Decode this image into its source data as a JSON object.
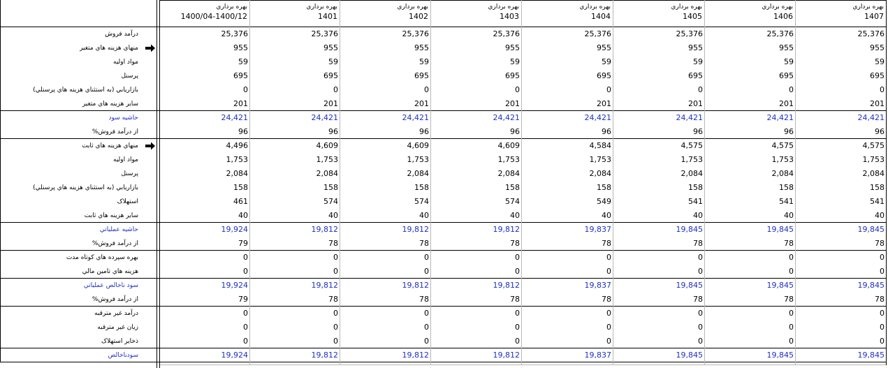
{
  "columns": [
    {
      "line1": "بهره برداري",
      "line2": "1400/04-1400/12"
    },
    {
      "line1": "بهره برداري",
      "line2": "1401"
    },
    {
      "line1": "بهره برداري",
      "line2": "1402"
    },
    {
      "line1": "بهره برداري",
      "line2": "1403"
    },
    {
      "line1": "بهره برداري",
      "line2": "1404"
    },
    {
      "line1": "بهره برداري",
      "line2": "1405"
    },
    {
      "line1": "بهره برداري",
      "line2": "1406"
    },
    {
      "line1": "بهره برداري",
      "line2": "1407"
    }
  ],
  "rows": [
    {
      "label": "درآمد فروش",
      "values": [
        "25,376",
        "25,376",
        "25,376",
        "25,376",
        "25,376",
        "25,376",
        "25,376",
        "25,376"
      ]
    },
    {
      "label": "منهاي هزينه هاي متغير",
      "arrow": true,
      "values": [
        "955",
        "955",
        "955",
        "955",
        "955",
        "955",
        "955",
        "955"
      ]
    },
    {
      "label": "مواد اوليه",
      "values": [
        "59",
        "59",
        "59",
        "59",
        "59",
        "59",
        "59",
        "59"
      ]
    },
    {
      "label": "پرسنل",
      "values": [
        "695",
        "695",
        "695",
        "695",
        "695",
        "695",
        "695",
        "695"
      ]
    },
    {
      "label": "بازاريابي (به استثناي هزينه هاي پرسنلي)",
      "values": [
        "0",
        "0",
        "0",
        "0",
        "0",
        "0",
        "0",
        "0"
      ]
    },
    {
      "label": "ساير هزينه هاي متغير",
      "values": [
        "201",
        "201",
        "201",
        "201",
        "201",
        "201",
        "201",
        "201"
      ]
    },
    {
      "label": "حاشيه سود",
      "highlight": true,
      "values": [
        "24,421",
        "24,421",
        "24,421",
        "24,421",
        "24,421",
        "24,421",
        "24,421",
        "24,421"
      ]
    },
    {
      "label": "%از درآمد فروش",
      "values": [
        "96",
        "96",
        "96",
        "96",
        "96",
        "96",
        "96",
        "96"
      ]
    },
    {
      "label": "منهاي هزينه هاي ثابت",
      "arrow": true,
      "values": [
        "4,496",
        "4,609",
        "4,609",
        "4,609",
        "4,584",
        "4,575",
        "4,575",
        "4,575"
      ]
    },
    {
      "label": "مواد اوليه",
      "values": [
        "1,753",
        "1,753",
        "1,753",
        "1,753",
        "1,753",
        "1,753",
        "1,753",
        "1,753"
      ]
    },
    {
      "label": "پرسنل",
      "values": [
        "2,084",
        "2,084",
        "2,084",
        "2,084",
        "2,084",
        "2,084",
        "2,084",
        "2,084"
      ]
    },
    {
      "label": "بازاريابي (به استثناي هزينه هاي پرسنلي)",
      "values": [
        "158",
        "158",
        "158",
        "158",
        "158",
        "158",
        "158",
        "158"
      ]
    },
    {
      "label": "استهلاک",
      "values": [
        "461",
        "574",
        "574",
        "574",
        "549",
        "541",
        "541",
        "541"
      ]
    },
    {
      "label": "ساير هزينه هاي ثابت",
      "values": [
        "40",
        "40",
        "40",
        "40",
        "40",
        "40",
        "40",
        "40"
      ]
    },
    {
      "label": "حاشيه عملياتي",
      "highlight": true,
      "values": [
        "19,924",
        "19,812",
        "19,812",
        "19,812",
        "19,837",
        "19,845",
        "19,845",
        "19,845"
      ]
    },
    {
      "label": "%از درآمد فروش",
      "values": [
        "79",
        "78",
        "78",
        "78",
        "78",
        "78",
        "78",
        "78"
      ]
    },
    {
      "label": "بهره سپرده هاي کوتاه مدت",
      "values": [
        "0",
        "0",
        "0",
        "0",
        "0",
        "0",
        "0",
        "0"
      ]
    },
    {
      "label": "هزينه هاي تامين مالي",
      "values": [
        "0",
        "0",
        "0",
        "0",
        "0",
        "0",
        "0",
        "0"
      ]
    },
    {
      "label": "سود ناخالص عملياتي",
      "highlight": true,
      "values": [
        "19,924",
        "19,812",
        "19,812",
        "19,812",
        "19,837",
        "19,845",
        "19,845",
        "19,845"
      ]
    },
    {
      "label": "%از درآمد فروش",
      "values": [
        "79",
        "78",
        "78",
        "78",
        "78",
        "78",
        "78",
        "78"
      ]
    },
    {
      "label": "درآمد غير مترقبه",
      "values": [
        "0",
        "0",
        "0",
        "0",
        "0",
        "0",
        "0",
        "0"
      ]
    },
    {
      "label": "زيان غير مترقبه",
      "values": [
        "0",
        "0",
        "0",
        "0",
        "0",
        "0",
        "0",
        "0"
      ]
    },
    {
      "label": "ذخاير استهلاک",
      "values": [
        "0",
        "0",
        "0",
        "0",
        "0",
        "0",
        "0",
        "0"
      ]
    },
    {
      "label": "سودناخالص",
      "highlight": true,
      "values": [
        "19,924",
        "19,812",
        "19,812",
        "19,812",
        "19,837",
        "19,845",
        "19,845",
        "19,845"
      ]
    }
  ],
  "colors": {
    "highlight": "#1f2fc4",
    "border": "#000000",
    "grid": "#b8b8b8"
  },
  "icons": {
    "row_marker": "right-arrow-icon"
  }
}
